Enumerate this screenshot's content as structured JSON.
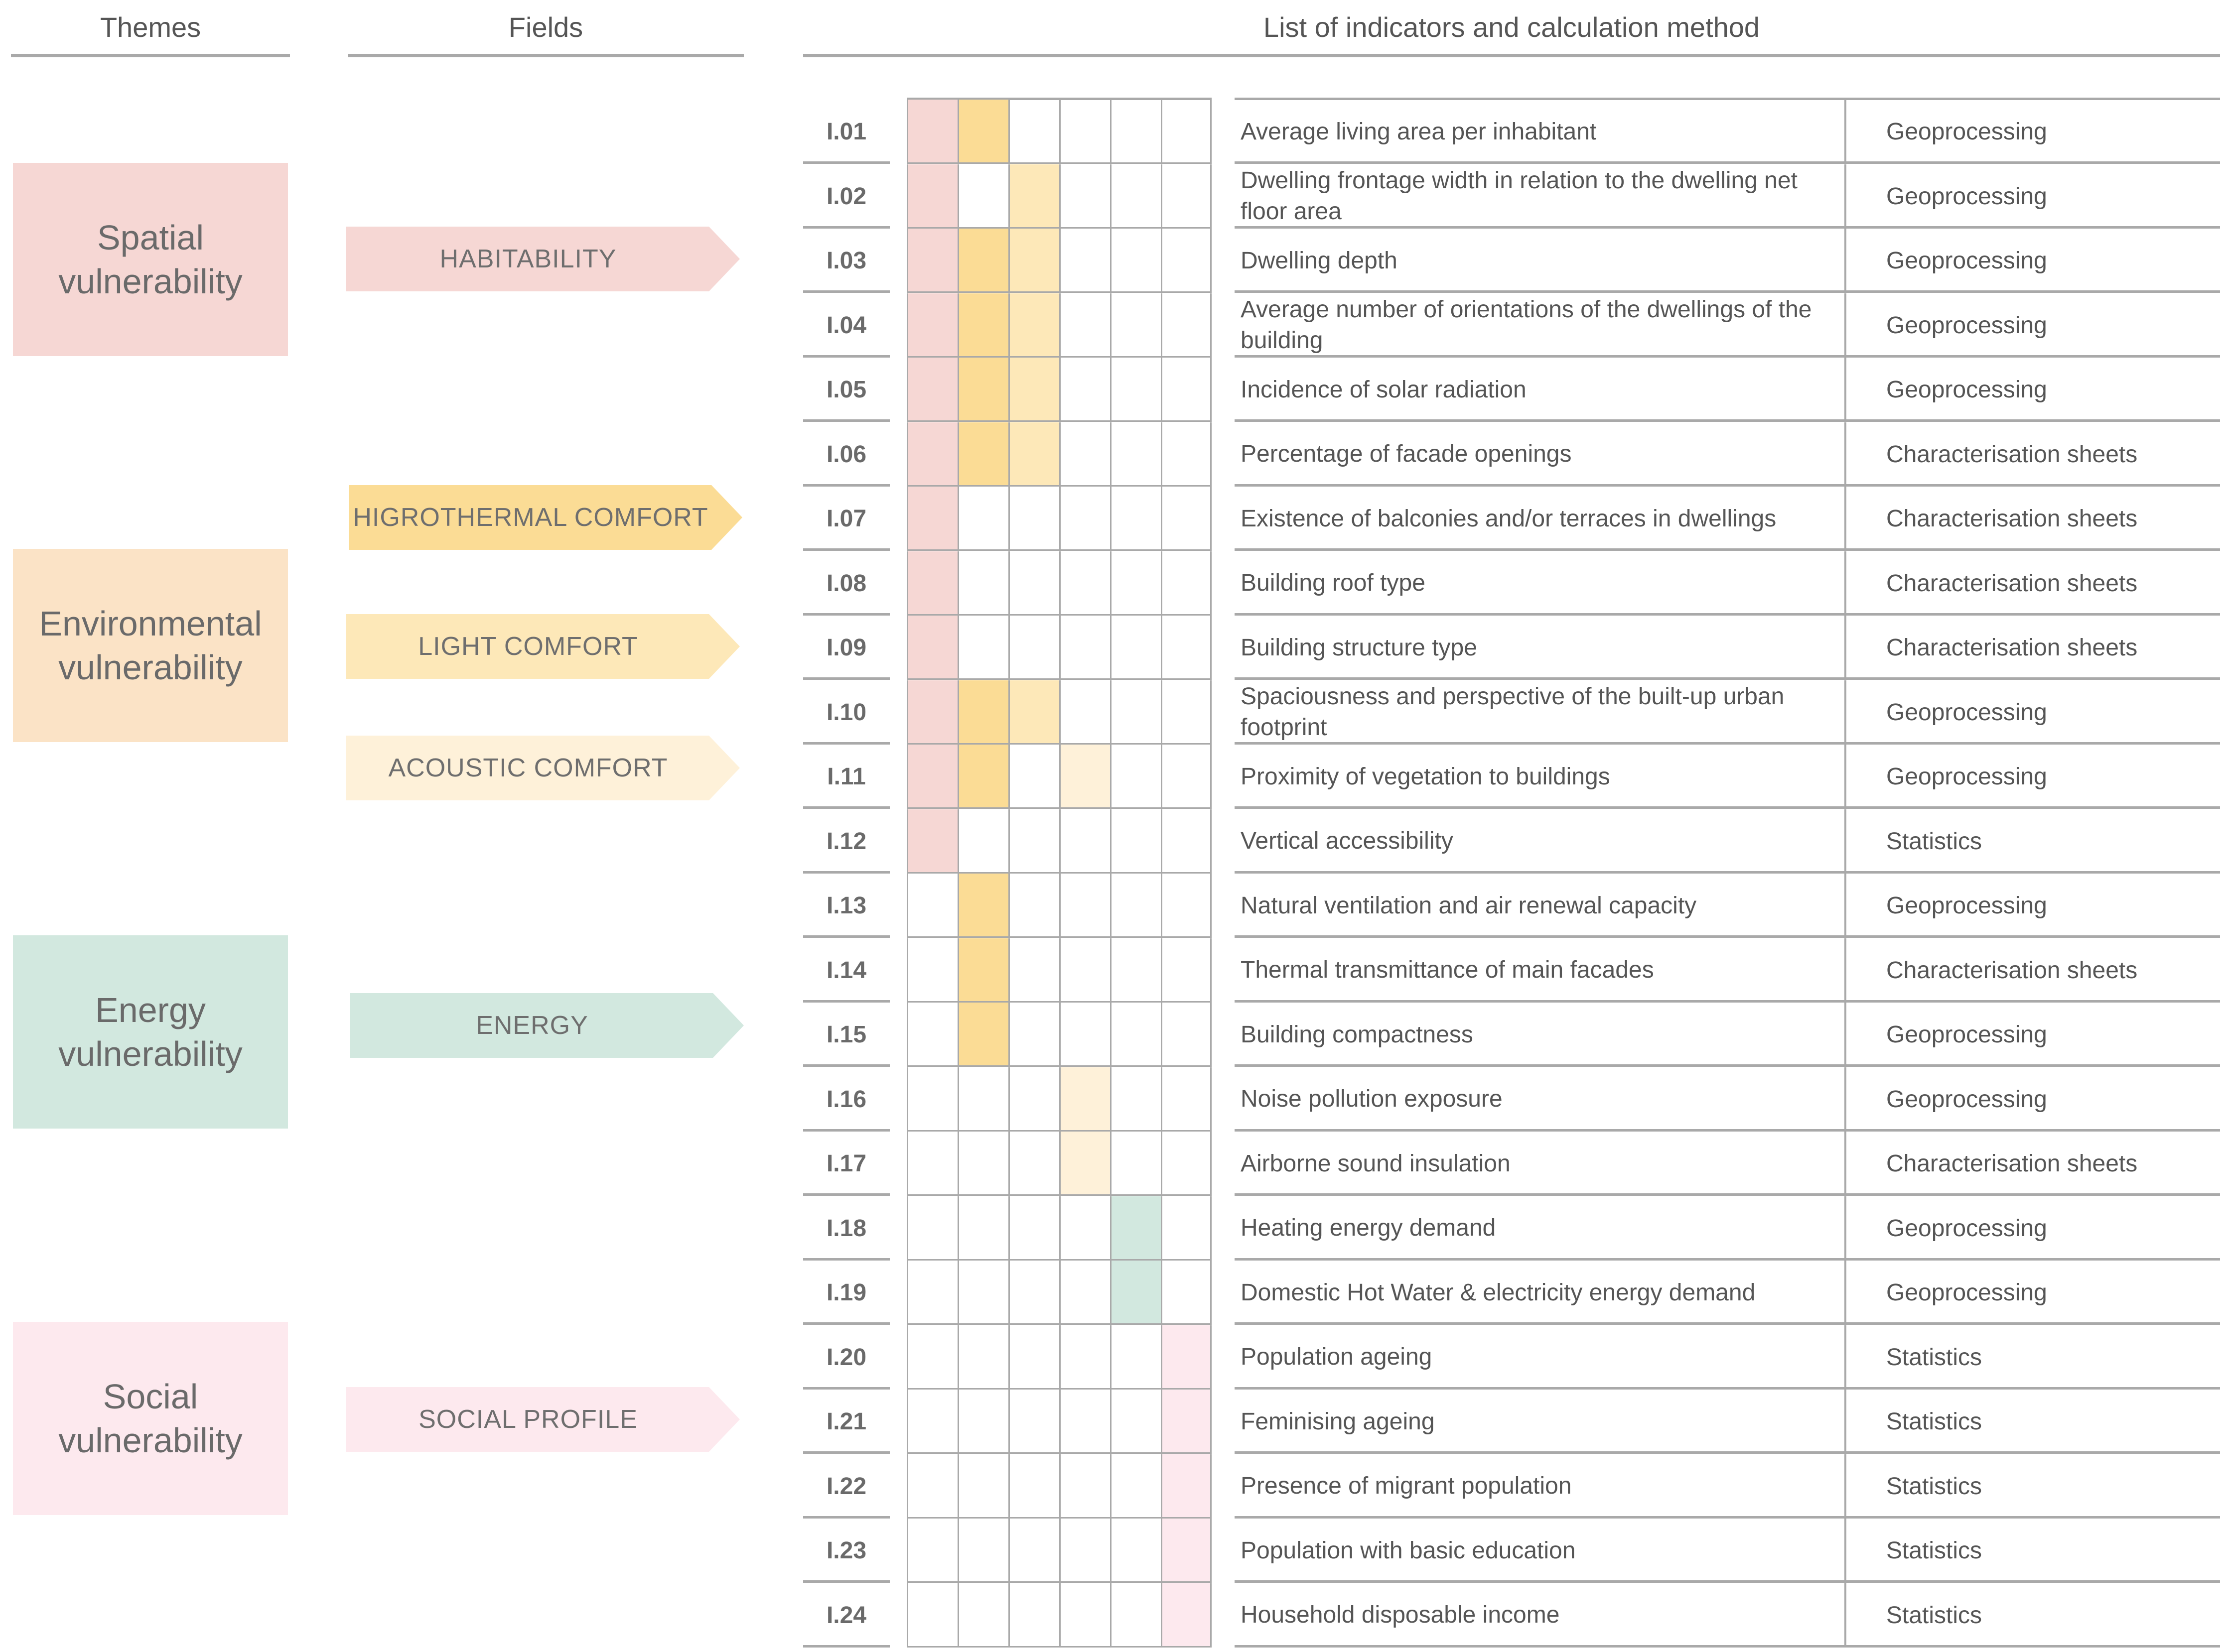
{
  "headers": {
    "themes": "Themes",
    "fields": "Fields",
    "indicators": "List of indicators and calculation method"
  },
  "colors": {
    "spatial": "#f6d7d4",
    "environmental": "#fbe3c6",
    "energy": "#d2e8df",
    "social": "#fde9ee",
    "habitability": "#f6d7d4",
    "higrothermal": "#fbdc95",
    "light": "#fde8b8",
    "acoustic": "#fef1d9",
    "energy_field": "#d2e8df",
    "social_profile": "#fde9ee"
  },
  "themes": [
    {
      "line1": "Spatial",
      "line2": "vulnerability",
      "color_key": "spatial"
    },
    {
      "line1": "Environmental",
      "line2": "vulnerability",
      "color_key": "environmental"
    },
    {
      "line1": "Energy",
      "line2": "vulnerability",
      "color_key": "energy"
    },
    {
      "line1": "Social",
      "line2": "vulnerability",
      "color_key": "social"
    }
  ],
  "fields": [
    {
      "label": "HABITABILITY",
      "color_key": "habitability"
    },
    {
      "label": "HIGROTHERMAL COMFORT",
      "color_key": "higrothermal"
    },
    {
      "label": "LIGHT COMFORT",
      "color_key": "light"
    },
    {
      "label": "ACOUSTIC COMFORT",
      "color_key": "acoustic"
    },
    {
      "label": "ENERGY",
      "color_key": "energy_field"
    },
    {
      "label": "SOCIAL PROFILE",
      "color_key": "social_profile"
    }
  ],
  "matrix_columns": [
    "habitability",
    "higrothermal",
    "light",
    "acoustic",
    "energy_field",
    "social_profile"
  ],
  "indicators": [
    {
      "id": "I.01",
      "description": "Average living area per inhabitant",
      "method": "Geoprocessing",
      "fields": [
        1,
        1,
        0,
        0,
        0,
        0
      ]
    },
    {
      "id": "I.02",
      "description": "Dwelling frontage width in relation to the dwelling net floor area",
      "method": "Geoprocessing",
      "fields": [
        1,
        0,
        1,
        0,
        0,
        0
      ]
    },
    {
      "id": "I.03",
      "description": "Dwelling depth",
      "method": "Geoprocessing",
      "fields": [
        1,
        1,
        1,
        0,
        0,
        0
      ]
    },
    {
      "id": "I.04",
      "description": "Average number of orientations of the dwellings of the building",
      "method": "Geoprocessing",
      "fields": [
        1,
        1,
        1,
        0,
        0,
        0
      ]
    },
    {
      "id": "I.05",
      "description": "Incidence of solar radiation",
      "method": "Geoprocessing",
      "fields": [
        1,
        1,
        1,
        0,
        0,
        0
      ]
    },
    {
      "id": "I.06",
      "description": "Percentage of facade openings",
      "method": "Characterisation sheets",
      "fields": [
        1,
        1,
        1,
        0,
        0,
        0
      ]
    },
    {
      "id": "I.07",
      "description": "Existence of balconies and/or terraces in dwellings",
      "method": "Characterisation sheets",
      "fields": [
        1,
        0,
        0,
        0,
        0,
        0
      ]
    },
    {
      "id": "I.08",
      "description": "Building roof type",
      "method": "Characterisation sheets",
      "fields": [
        1,
        0,
        0,
        0,
        0,
        0
      ]
    },
    {
      "id": "I.09",
      "description": "Building structure type",
      "method": "Characterisation sheets",
      "fields": [
        1,
        0,
        0,
        0,
        0,
        0
      ]
    },
    {
      "id": "I.10",
      "description": "Spaciousness and perspective of the built-up urban footprint",
      "method": "Geoprocessing",
      "fields": [
        1,
        1,
        1,
        0,
        0,
        0
      ]
    },
    {
      "id": "I.11",
      "description": "Proximity of vegetation to buildings",
      "method": "Geoprocessing",
      "fields": [
        1,
        1,
        0,
        1,
        0,
        0
      ]
    },
    {
      "id": "I.12",
      "description": "Vertical accessibility",
      "method": "Statistics",
      "fields": [
        1,
        0,
        0,
        0,
        0,
        0
      ]
    },
    {
      "id": "I.13",
      "description": "Natural ventilation and air renewal capacity",
      "method": "Geoprocessing",
      "fields": [
        0,
        1,
        0,
        0,
        0,
        0
      ]
    },
    {
      "id": "I.14",
      "description": "Thermal transmittance of main facades",
      "method": "Characterisation sheets",
      "fields": [
        0,
        1,
        0,
        0,
        0,
        0
      ]
    },
    {
      "id": "I.15",
      "description": "Building compactness",
      "method": "Geoprocessing",
      "fields": [
        0,
        1,
        0,
        0,
        0,
        0
      ]
    },
    {
      "id": "I.16",
      "description": "Noise pollution exposure",
      "method": "Geoprocessing",
      "fields": [
        0,
        0,
        0,
        1,
        0,
        0
      ]
    },
    {
      "id": "I.17",
      "description": "Airborne sound insulation",
      "method": "Characterisation sheets",
      "fields": [
        0,
        0,
        0,
        1,
        0,
        0
      ]
    },
    {
      "id": "I.18",
      "description": "Heating energy demand",
      "method": "Geoprocessing",
      "fields": [
        0,
        0,
        0,
        0,
        1,
        0
      ]
    },
    {
      "id": "I.19",
      "description": "Domestic Hot Water & electricity energy demand",
      "method": "Geoprocessing",
      "fields": [
        0,
        0,
        0,
        0,
        1,
        0
      ]
    },
    {
      "id": "I.20",
      "description": "Population ageing",
      "method": "Statistics",
      "fields": [
        0,
        0,
        0,
        0,
        0,
        1
      ]
    },
    {
      "id": "I.21",
      "description": "Feminising ageing",
      "method": "Statistics",
      "fields": [
        0,
        0,
        0,
        0,
        0,
        1
      ]
    },
    {
      "id": "I.22",
      "description": "Presence of migrant population",
      "method": "Statistics",
      "fields": [
        0,
        0,
        0,
        0,
        0,
        1
      ]
    },
    {
      "id": "I.23",
      "description": "Population with basic education",
      "method": "Statistics",
      "fields": [
        0,
        0,
        0,
        0,
        0,
        1
      ]
    },
    {
      "id": "I.24",
      "description": "Household disposable income",
      "method": "Statistics",
      "fields": [
        0,
        0,
        0,
        0,
        0,
        1
      ]
    }
  ]
}
